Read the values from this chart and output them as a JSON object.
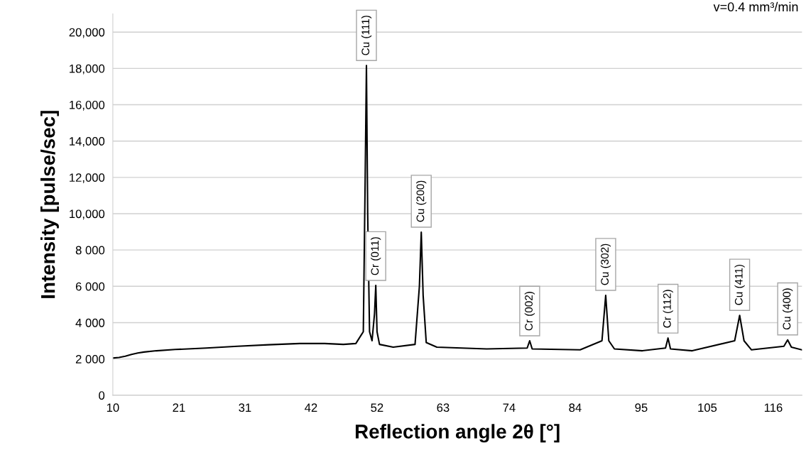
{
  "chart_data": {
    "type": "line",
    "xlabel": "Reflection angle 2θ [°]",
    "ylabel": "Intensity [pulse/sec]",
    "xlim": [
      10,
      120.6
    ],
    "ylim": [
      0,
      21000
    ],
    "xticks": [
      {
        "value": 10,
        "label": "10"
      },
      {
        "value": 20.6,
        "label": "21"
      },
      {
        "value": 31.2,
        "label": "31"
      },
      {
        "value": 41.8,
        "label": "42"
      },
      {
        "value": 52.4,
        "label": "52"
      },
      {
        "value": 63,
        "label": "63"
      },
      {
        "value": 73.6,
        "label": "74"
      },
      {
        "value": 84.2,
        "label": "84"
      },
      {
        "value": 94.8,
        "label": "95"
      },
      {
        "value": 105.4,
        "label": "105"
      },
      {
        "value": 116,
        "label": "116"
      }
    ],
    "yticks": [
      {
        "value": 0,
        "label": "0"
      },
      {
        "value": 2000,
        "label": "2 000"
      },
      {
        "value": 4000,
        "label": "4 000"
      },
      {
        "value": 6000,
        "label": "6 000"
      },
      {
        "value": 8000,
        "label": "8 000"
      },
      {
        "value": 10000,
        "label": "10,000"
      },
      {
        "value": 12000,
        "label": "12,000"
      },
      {
        "value": 14000,
        "label": "14,000"
      },
      {
        "value": 16000,
        "label": "16,000"
      },
      {
        "value": 18000,
        "label": "18,000"
      },
      {
        "value": 20000,
        "label": "20,000"
      }
    ],
    "grid": "y",
    "legend": false,
    "marker": "none",
    "line_style": "solid",
    "series": [
      {
        "color": "#000000",
        "x": [
          10,
          11,
          12,
          13,
          14,
          15,
          17,
          20,
          25,
          30,
          35,
          40,
          44,
          47,
          49,
          50.2,
          50.5,
          50.7,
          50.9,
          51.2,
          51.6,
          52.0,
          52.2,
          52.4,
          52.8,
          55,
          58.5,
          59.2,
          59.5,
          59.8,
          60.3,
          62,
          70,
          76.5,
          76.9,
          77.3,
          85,
          88.5,
          89.1,
          89.6,
          90.5,
          95,
          98.7,
          99.1,
          99.5,
          103,
          109.8,
          110.6,
          111.3,
          112.5,
          117.7,
          118.3,
          118.9,
          120.6
        ],
        "values": [
          2050,
          2080,
          2150,
          2250,
          2330,
          2380,
          2450,
          2520,
          2600,
          2700,
          2780,
          2850,
          2850,
          2800,
          2850,
          3500,
          12000,
          18160,
          10000,
          3500,
          3000,
          4500,
          6050,
          3500,
          2800,
          2650,
          2800,
          6000,
          8980,
          5500,
          2900,
          2650,
          2550,
          2600,
          3000,
          2550,
          2500,
          3000,
          5500,
          3000,
          2550,
          2450,
          2600,
          3150,
          2550,
          2450,
          3000,
          4400,
          3000,
          2500,
          2700,
          3050,
          2650,
          2500
        ]
      }
    ],
    "annotations": [
      {
        "text": "Cu (111)",
        "x": 50.7,
        "y": 18160
      },
      {
        "text": "Cr (011)",
        "x": 52.2,
        "y": 6050
      },
      {
        "text": "Cu (200)",
        "x": 59.5,
        "y": 8980
      },
      {
        "text": "Cr (002)",
        "x": 76.9,
        "y": 3000
      },
      {
        "text": "Cu (302)",
        "x": 89.1,
        "y": 5500
      },
      {
        "text": "Cr (112)",
        "x": 99.1,
        "y": 3150
      },
      {
        "text": "Cu (411)",
        "x": 110.6,
        "y": 4400
      },
      {
        "text": "Cu (400)",
        "x": 118.3,
        "y": 3050
      },
      "v=0.4 mm³/min"
    ]
  }
}
